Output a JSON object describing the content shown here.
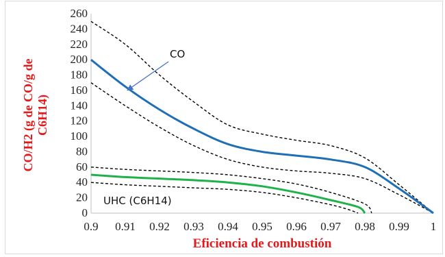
{
  "chart_data": {
    "type": "line",
    "title": "",
    "xlabel": "Eficiencia de combustión",
    "ylabel_lines": [
      "CO/H2 (g de CO/g de",
      "C6H14)"
    ],
    "xlim": [
      0.9,
      1.0
    ],
    "ylim": [
      0,
      260
    ],
    "x_ticks": [
      "0.9",
      "0.91",
      "0.92",
      "0.93",
      "0.94",
      "0.95",
      "0.96",
      "0.97",
      "0.98",
      "0.99",
      "1"
    ],
    "y_ticks": [
      "0",
      "20",
      "40",
      "60",
      "80",
      "100",
      "120",
      "140",
      "160",
      "180",
      "200",
      "220",
      "240",
      "260"
    ],
    "grid": false,
    "series": [
      {
        "name": "CO",
        "color": "#1f6fb5",
        "style": "solid",
        "points": [
          [
            0.9,
            200
          ],
          [
            0.91,
            165
          ],
          [
            0.92,
            135
          ],
          [
            0.93,
            110
          ],
          [
            0.94,
            90
          ],
          [
            0.95,
            80
          ],
          [
            0.96,
            75
          ],
          [
            0.97,
            70
          ],
          [
            0.98,
            60
          ],
          [
            0.99,
            32
          ],
          [
            1.0,
            0
          ]
        ]
      },
      {
        "name": "",
        "color": "#000000",
        "style": "dashed",
        "points": [
          [
            0.9,
            250
          ],
          [
            0.91,
            220
          ],
          [
            0.92,
            180
          ],
          [
            0.93,
            145
          ],
          [
            0.94,
            115
          ],
          [
            0.95,
            103
          ],
          [
            0.96,
            95
          ],
          [
            0.97,
            88
          ],
          [
            0.98,
            72
          ],
          [
            0.99,
            37
          ],
          [
            1.0,
            0
          ]
        ]
      },
      {
        "name": "",
        "color": "#000000",
        "style": "dashed",
        "points": [
          [
            0.9,
            170
          ],
          [
            0.91,
            140
          ],
          [
            0.92,
            112
          ],
          [
            0.93,
            88
          ],
          [
            0.94,
            70
          ],
          [
            0.95,
            60
          ],
          [
            0.96,
            55
          ],
          [
            0.97,
            52
          ],
          [
            0.98,
            45
          ],
          [
            0.99,
            24
          ],
          [
            1.0,
            0
          ]
        ]
      },
      {
        "name": "UHC (C6H14)",
        "color": "#1fb24a",
        "style": "solid",
        "points": [
          [
            0.9,
            50
          ],
          [
            0.91,
            47
          ],
          [
            0.92,
            45
          ],
          [
            0.93,
            43
          ],
          [
            0.94,
            40
          ],
          [
            0.95,
            35
          ],
          [
            0.96,
            27
          ],
          [
            0.97,
            17
          ],
          [
            0.978,
            8
          ],
          [
            0.98,
            0
          ]
        ]
      },
      {
        "name": "",
        "color": "#000000",
        "style": "dashed",
        "points": [
          [
            0.9,
            60
          ],
          [
            0.91,
            57
          ],
          [
            0.92,
            55
          ],
          [
            0.93,
            53
          ],
          [
            0.94,
            50
          ],
          [
            0.95,
            45
          ],
          [
            0.96,
            38
          ],
          [
            0.97,
            27
          ],
          [
            0.98,
            12
          ],
          [
            0.982,
            0
          ]
        ]
      },
      {
        "name": "",
        "color": "#000000",
        "style": "dashed",
        "points": [
          [
            0.9,
            40
          ],
          [
            0.91,
            37
          ],
          [
            0.92,
            35
          ],
          [
            0.93,
            33
          ],
          [
            0.94,
            31
          ],
          [
            0.95,
            27
          ],
          [
            0.96,
            20
          ],
          [
            0.97,
            11
          ],
          [
            0.975,
            5
          ],
          [
            0.978,
            0
          ]
        ]
      }
    ],
    "annotations": [
      {
        "text": "CO",
        "arrow_color": "#4472c4",
        "points_to": [
          0.91,
          162
        ]
      },
      {
        "text": "UHC (C6H14)"
      }
    ]
  }
}
